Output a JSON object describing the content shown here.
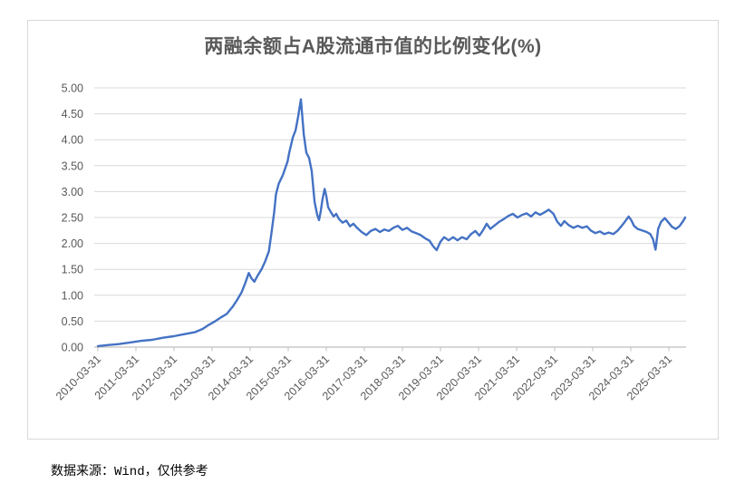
{
  "source_note": "数据来源：Wind，仅供参考",
  "colors": {
    "line": "#4472C4",
    "gridline": "#D9D9D9",
    "axis": "#BFBFBF",
    "tick_label": "#595959",
    "title": "#595959",
    "frame_border": "#D9D9D9",
    "background": "#FFFFFF",
    "source_text": "#000000"
  },
  "chart_data": {
    "type": "line",
    "title": "两融余额占A股流通市值的比例变化(%)",
    "xlabel": "",
    "ylabel": "",
    "ylim": [
      0,
      5
    ],
    "y_tick_step": 0.5,
    "grid": "horizontal",
    "legend": "none",
    "y_ticks": [
      "0.00",
      "0.50",
      "1.00",
      "1.50",
      "2.00",
      "2.50",
      "3.00",
      "3.50",
      "4.00",
      "4.50",
      "5.00"
    ],
    "x_ticks": [
      "2010-03-31",
      "2011-03-31",
      "2012-03-31",
      "2013-03-31",
      "2014-03-31",
      "2015-03-31",
      "2016-03-31",
      "2017-03-31",
      "2018-03-31",
      "2019-03-31",
      "2020-03-31",
      "2021-03-31",
      "2022-03-31",
      "2023-03-31",
      "2024-03-31",
      "2025-03-31"
    ],
    "series": [
      {
        "color": "#4472C4",
        "points": [
          [
            "2010-03-31",
            0.02
          ],
          [
            "2010-07-10",
            0.04
          ],
          [
            "2010-10-25",
            0.06
          ],
          [
            "2011-02-05",
            0.09
          ],
          [
            "2011-05-22",
            0.12
          ],
          [
            "2011-09-02",
            0.14
          ],
          [
            "2011-12-15",
            0.18
          ],
          [
            "2012-03-28",
            0.21
          ],
          [
            "2012-07-10",
            0.25
          ],
          [
            "2012-10-22",
            0.29
          ],
          [
            "2013-01-01",
            0.35
          ],
          [
            "2013-03-01",
            0.43
          ],
          [
            "2013-05-01",
            0.5
          ],
          [
            "2013-07-01",
            0.58
          ],
          [
            "2013-08-20",
            0.64
          ],
          [
            "2013-10-15",
            0.78
          ],
          [
            "2013-11-25",
            0.9
          ],
          [
            "2014-01-08",
            1.05
          ],
          [
            "2014-02-12",
            1.22
          ],
          [
            "2014-03-18",
            1.43
          ],
          [
            "2014-04-12",
            1.33
          ],
          [
            "2014-05-10",
            1.26
          ],
          [
            "2014-06-12",
            1.38
          ],
          [
            "2014-07-18",
            1.5
          ],
          [
            "2014-08-22",
            1.65
          ],
          [
            "2014-09-28",
            1.85
          ],
          [
            "2014-10-22",
            2.2
          ],
          [
            "2014-11-18",
            2.6
          ],
          [
            "2014-12-05",
            2.95
          ],
          [
            "2015-01-01",
            3.15
          ],
          [
            "2015-02-10",
            3.32
          ],
          [
            "2015-03-25",
            3.58
          ],
          [
            "2015-04-10",
            3.75
          ],
          [
            "2015-05-15",
            4.05
          ],
          [
            "2015-06-10",
            4.18
          ],
          [
            "2015-07-05",
            4.45
          ],
          [
            "2015-08-01",
            4.78
          ],
          [
            "2015-08-28",
            4.1
          ],
          [
            "2015-09-22",
            3.75
          ],
          [
            "2015-10-18",
            3.65
          ],
          [
            "2015-11-13",
            3.4
          ],
          [
            "2015-12-10",
            2.8
          ],
          [
            "2016-01-05",
            2.55
          ],
          [
            "2016-01-22",
            2.45
          ],
          [
            "2016-02-08",
            2.62
          ],
          [
            "2016-02-25",
            2.85
          ],
          [
            "2016-03-15",
            3.05
          ],
          [
            "2016-04-01",
            2.92
          ],
          [
            "2016-04-18",
            2.7
          ],
          [
            "2016-05-15",
            2.6
          ],
          [
            "2016-06-10",
            2.52
          ],
          [
            "2016-07-05",
            2.57
          ],
          [
            "2016-08-01",
            2.47
          ],
          [
            "2016-09-05",
            2.4
          ],
          [
            "2016-10-10",
            2.44
          ],
          [
            "2016-11-15",
            2.33
          ],
          [
            "2016-12-18",
            2.38
          ],
          [
            "2017-01-22",
            2.3
          ],
          [
            "2017-03-05",
            2.22
          ],
          [
            "2017-04-20",
            2.16
          ],
          [
            "2017-06-01",
            2.24
          ],
          [
            "2017-07-15",
            2.28
          ],
          [
            "2017-08-28",
            2.22
          ],
          [
            "2017-10-10",
            2.27
          ],
          [
            "2017-11-22",
            2.24
          ],
          [
            "2018-01-05",
            2.3
          ],
          [
            "2018-02-18",
            2.34
          ],
          [
            "2018-04-01",
            2.26
          ],
          [
            "2018-05-15",
            2.3
          ],
          [
            "2018-06-28",
            2.23
          ],
          [
            "2018-08-10",
            2.2
          ],
          [
            "2018-09-22",
            2.16
          ],
          [
            "2018-11-05",
            2.1
          ],
          [
            "2018-12-18",
            2.05
          ],
          [
            "2019-01-20",
            1.95
          ],
          [
            "2019-02-25",
            1.87
          ],
          [
            "2019-03-30",
            2.03
          ],
          [
            "2019-05-05",
            2.12
          ],
          [
            "2019-06-18",
            2.06
          ],
          [
            "2019-08-01",
            2.12
          ],
          [
            "2019-09-12",
            2.06
          ],
          [
            "2019-10-25",
            2.12
          ],
          [
            "2019-12-08",
            2.08
          ],
          [
            "2020-01-20",
            2.18
          ],
          [
            "2020-03-01",
            2.24
          ],
          [
            "2020-04-08",
            2.15
          ],
          [
            "2020-05-12",
            2.25
          ],
          [
            "2020-06-18",
            2.38
          ],
          [
            "2020-07-22",
            2.28
          ],
          [
            "2020-09-05",
            2.35
          ],
          [
            "2020-10-18",
            2.42
          ],
          [
            "2020-11-30",
            2.47
          ],
          [
            "2021-01-12",
            2.53
          ],
          [
            "2021-02-25",
            2.57
          ],
          [
            "2021-04-10",
            2.5
          ],
          [
            "2021-05-22",
            2.55
          ],
          [
            "2021-07-05",
            2.58
          ],
          [
            "2021-08-18",
            2.52
          ],
          [
            "2021-09-30",
            2.6
          ],
          [
            "2021-11-12",
            2.55
          ],
          [
            "2021-12-25",
            2.6
          ],
          [
            "2022-02-05",
            2.65
          ],
          [
            "2022-03-20",
            2.57
          ],
          [
            "2022-04-25",
            2.42
          ],
          [
            "2022-05-30",
            2.34
          ],
          [
            "2022-07-02",
            2.43
          ],
          [
            "2022-08-15",
            2.35
          ],
          [
            "2022-09-28",
            2.3
          ],
          [
            "2022-11-10",
            2.34
          ],
          [
            "2022-12-22",
            2.3
          ],
          [
            "2023-02-05",
            2.33
          ],
          [
            "2023-03-12",
            2.25
          ],
          [
            "2023-04-25",
            2.2
          ],
          [
            "2023-06-08",
            2.23
          ],
          [
            "2023-07-20",
            2.18
          ],
          [
            "2023-09-02",
            2.21
          ],
          [
            "2023-10-15",
            2.18
          ],
          [
            "2023-11-28",
            2.25
          ],
          [
            "2024-01-01",
            2.33
          ],
          [
            "2024-02-05",
            2.42
          ],
          [
            "2024-03-10",
            2.52
          ],
          [
            "2024-04-05",
            2.45
          ],
          [
            "2024-05-01",
            2.34
          ],
          [
            "2024-06-05",
            2.28
          ],
          [
            "2024-07-18",
            2.25
          ],
          [
            "2024-09-01",
            2.22
          ],
          [
            "2024-10-05",
            2.18
          ],
          [
            "2024-11-01",
            2.08
          ],
          [
            "2024-11-25",
            1.88
          ],
          [
            "2024-12-20",
            2.28
          ],
          [
            "2025-01-18",
            2.42
          ],
          [
            "2025-02-22",
            2.49
          ],
          [
            "2025-03-28",
            2.4
          ],
          [
            "2025-05-01",
            2.32
          ],
          [
            "2025-06-05",
            2.28
          ],
          [
            "2025-07-10",
            2.33
          ],
          [
            "2025-08-15",
            2.43
          ],
          [
            "2025-09-05",
            2.5
          ]
        ]
      }
    ]
  }
}
